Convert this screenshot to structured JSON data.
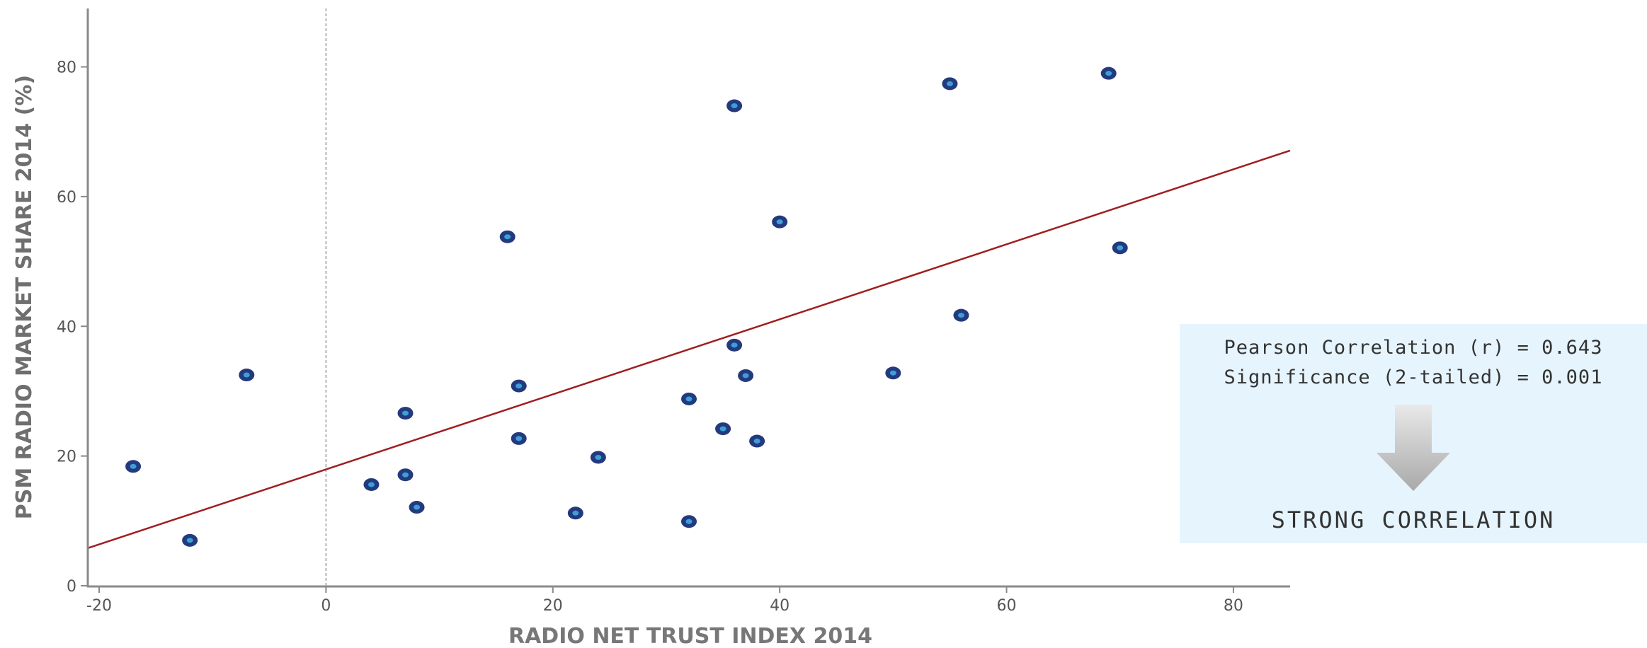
{
  "chart_data": {
    "type": "scatter",
    "xlabel": "RADIO NET TRUST INDEX 2014",
    "ylabel": "PSM RADIO MARKET SHARE 2014 (%)",
    "xlim": [
      -21,
      85
    ],
    "ylim": [
      0,
      89
    ],
    "xticks": [
      -20,
      0,
      20,
      40,
      60,
      80
    ],
    "yticks": [
      0,
      20,
      40,
      60,
      80
    ],
    "reference_line_x": 0,
    "grid": false,
    "legend": "none",
    "point_color": "#243a7e",
    "point_center_color": "#3aa0d8",
    "trendline": {
      "x": [
        -21,
        85
      ],
      "y": [
        5.8,
        67.1
      ],
      "color": "#a01e1e"
    },
    "points": [
      {
        "x": -17,
        "y": 18.4
      },
      {
        "x": -12,
        "y": 7.0
      },
      {
        "x": -7,
        "y": 32.5
      },
      {
        "x": 4,
        "y": 15.6
      },
      {
        "x": 7,
        "y": 26.6
      },
      {
        "x": 7,
        "y": 17.1
      },
      {
        "x": 8,
        "y": 12.1
      },
      {
        "x": 16,
        "y": 53.8
      },
      {
        "x": 17,
        "y": 30.8
      },
      {
        "x": 17,
        "y": 22.7
      },
      {
        "x": 22,
        "y": 11.2
      },
      {
        "x": 24,
        "y": 19.8
      },
      {
        "x": 32,
        "y": 28.8
      },
      {
        "x": 32,
        "y": 9.9
      },
      {
        "x": 35,
        "y": 24.2
      },
      {
        "x": 36,
        "y": 74.0
      },
      {
        "x": 36,
        "y": 37.1
      },
      {
        "x": 37,
        "y": 32.4
      },
      {
        "x": 38,
        "y": 22.3
      },
      {
        "x": 40,
        "y": 56.1
      },
      {
        "x": 50,
        "y": 32.8
      },
      {
        "x": 55,
        "y": 77.4
      },
      {
        "x": 56,
        "y": 41.7
      },
      {
        "x": 69,
        "y": 79.0
      },
      {
        "x": 70,
        "y": 52.1
      }
    ]
  },
  "stats_panel": {
    "pearson": "Pearson Correlation (r) = 0.643",
    "significance": "Significance (2-tailed) = 0.001",
    "arrow_icon": "down-arrow-icon",
    "verdict": "STRONG CORRELATION",
    "background": "#e6f4fd"
  }
}
